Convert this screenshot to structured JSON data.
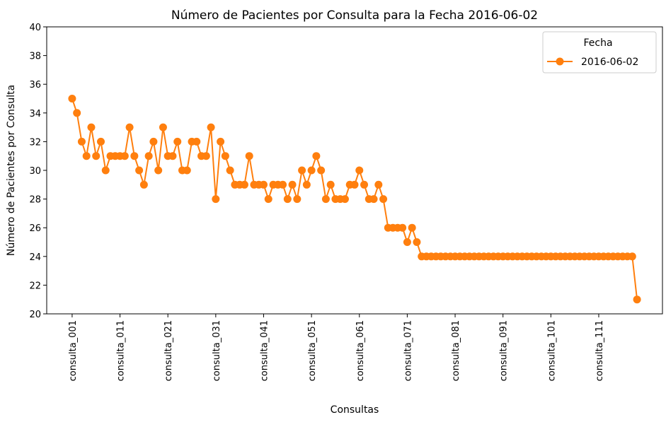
{
  "chart_data": {
    "type": "line",
    "title": "Número de Pacientes por Consulta para la Fecha 2016-06-02",
    "xlabel": "Consultas",
    "ylabel": "Número de Pacientes por Consulta",
    "ylim": [
      20,
      40
    ],
    "yticks": [
      20,
      22,
      24,
      26,
      28,
      30,
      32,
      34,
      36,
      38,
      40
    ],
    "xtick_labels": [
      "consulta_001",
      "consulta_011",
      "consulta_021",
      "consulta_031",
      "consulta_041",
      "consulta_051",
      "consulta_061",
      "consulta_071",
      "consulta_081",
      "consulta_091",
      "consulta_101",
      "consulta_111"
    ],
    "xtick_step": 10,
    "legend": {
      "title": "Fecha",
      "placement": "top-right"
    },
    "colors": {
      "series": "#ff7f0e"
    },
    "series": [
      {
        "name": "2016-06-02",
        "values": [
          35,
          34,
          32,
          31,
          33,
          31,
          32,
          30,
          31,
          31,
          31,
          31,
          33,
          31,
          30,
          29,
          31,
          32,
          30,
          33,
          31,
          31,
          32,
          30,
          30,
          32,
          32,
          31,
          31,
          33,
          28,
          32,
          31,
          30,
          29,
          29,
          29,
          31,
          29,
          29,
          29,
          28,
          29,
          29,
          29,
          28,
          29,
          28,
          30,
          29,
          30,
          31,
          30,
          28,
          29,
          28,
          28,
          28,
          29,
          29,
          30,
          29,
          28,
          28,
          29,
          28,
          26,
          26,
          26,
          26,
          25,
          26,
          25,
          24,
          24,
          24,
          24,
          24,
          24,
          24,
          24,
          24,
          24,
          24,
          24,
          24,
          24,
          24,
          24,
          24,
          24,
          24,
          24,
          24,
          24,
          24,
          24,
          24,
          24,
          24,
          24,
          24,
          24,
          24,
          24,
          24,
          24,
          24,
          24,
          24,
          24,
          24,
          24,
          24,
          24,
          24,
          24,
          24,
          21
        ]
      }
    ]
  }
}
